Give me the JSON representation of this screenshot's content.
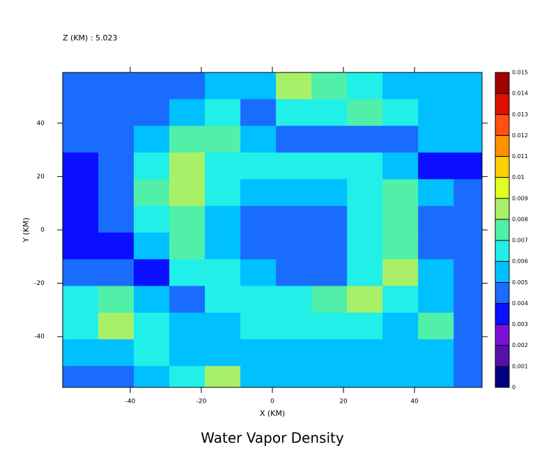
{
  "chart_data": {
    "type": "contour",
    "title": "Water Vapor Density",
    "subtitle": "Z (KM) : 5.023",
    "x_label": "X (KM)",
    "y_label": "Y (KM)",
    "xlim": [
      -59,
      59
    ],
    "ylim": [
      -59,
      59
    ],
    "xticks": [
      -40,
      -20,
      0,
      20,
      40
    ],
    "yticks": [
      -40,
      -20,
      0,
      20,
      40
    ],
    "x": [
      -54,
      -44,
      -34,
      -24,
      -14,
      -4,
      6,
      16,
      26,
      36,
      46,
      56
    ],
    "y": [
      54,
      44,
      34,
      24,
      14,
      4,
      -6,
      -16,
      -26,
      -36,
      -46,
      -56
    ],
    "z": [
      [
        0.0045,
        0.0045,
        0.0045,
        0.0045,
        0.0055,
        0.0055,
        0.0085,
        0.0075,
        0.0065,
        0.0055,
        0.0055,
        0.0055
      ],
      [
        0.0045,
        0.0045,
        0.0045,
        0.0055,
        0.0065,
        0.0045,
        0.0065,
        0.0065,
        0.0075,
        0.0065,
        0.0055,
        0.0055
      ],
      [
        0.0045,
        0.0045,
        0.0055,
        0.0075,
        0.0075,
        0.0055,
        0.0045,
        0.0045,
        0.0045,
        0.0045,
        0.0055,
        0.0055
      ],
      [
        0.0035,
        0.0045,
        0.0065,
        0.0085,
        0.0065,
        0.0065,
        0.0065,
        0.0065,
        0.0065,
        0.0055,
        0.0035,
        0.0035
      ],
      [
        0.0035,
        0.0045,
        0.0075,
        0.0085,
        0.0065,
        0.0055,
        0.0055,
        0.0055,
        0.0065,
        0.0075,
        0.0055,
        0.0045
      ],
      [
        0.0035,
        0.0045,
        0.0065,
        0.0075,
        0.0055,
        0.0045,
        0.0045,
        0.0045,
        0.0065,
        0.0075,
        0.0045,
        0.0045
      ],
      [
        0.0035,
        0.0035,
        0.0055,
        0.0075,
        0.0055,
        0.0045,
        0.0045,
        0.0045,
        0.0065,
        0.0075,
        0.0045,
        0.0045
      ],
      [
        0.0045,
        0.0045,
        0.0035,
        0.0065,
        0.0065,
        0.0055,
        0.0045,
        0.0045,
        0.0065,
        0.0085,
        0.0055,
        0.0045
      ],
      [
        0.0065,
        0.0075,
        0.0055,
        0.0045,
        0.0065,
        0.0065,
        0.0065,
        0.0075,
        0.0085,
        0.0065,
        0.0055,
        0.0045
      ],
      [
        0.0065,
        0.0085,
        0.0065,
        0.0055,
        0.0055,
        0.0065,
        0.0065,
        0.0065,
        0.0065,
        0.0055,
        0.0075,
        0.0045
      ],
      [
        0.0055,
        0.0055,
        0.0065,
        0.0055,
        0.0055,
        0.0055,
        0.0055,
        0.0055,
        0.0055,
        0.0055,
        0.0055,
        0.0045
      ],
      [
        0.0045,
        0.0045,
        0.0055,
        0.0065,
        0.0085,
        0.0055,
        0.0055,
        0.0055,
        0.0055,
        0.0055,
        0.0055,
        0.0045
      ]
    ],
    "levels": [
      0,
      0.001,
      0.002,
      0.003,
      0.004,
      0.005,
      0.006,
      0.007,
      0.008,
      0.009,
      0.01,
      0.011,
      0.012,
      0.013,
      0.014,
      0.015
    ],
    "colors": [
      "#000080",
      "#5a10a8",
      "#7a10d8",
      "#0a10ff",
      "#1a6cff",
      "#00c0ff",
      "#20f0e8",
      "#50f0a8",
      "#a8f068",
      "#e0ff20",
      "#ffd000",
      "#ff9000",
      "#ff5010",
      "#e01000",
      "#a00000"
    ]
  }
}
